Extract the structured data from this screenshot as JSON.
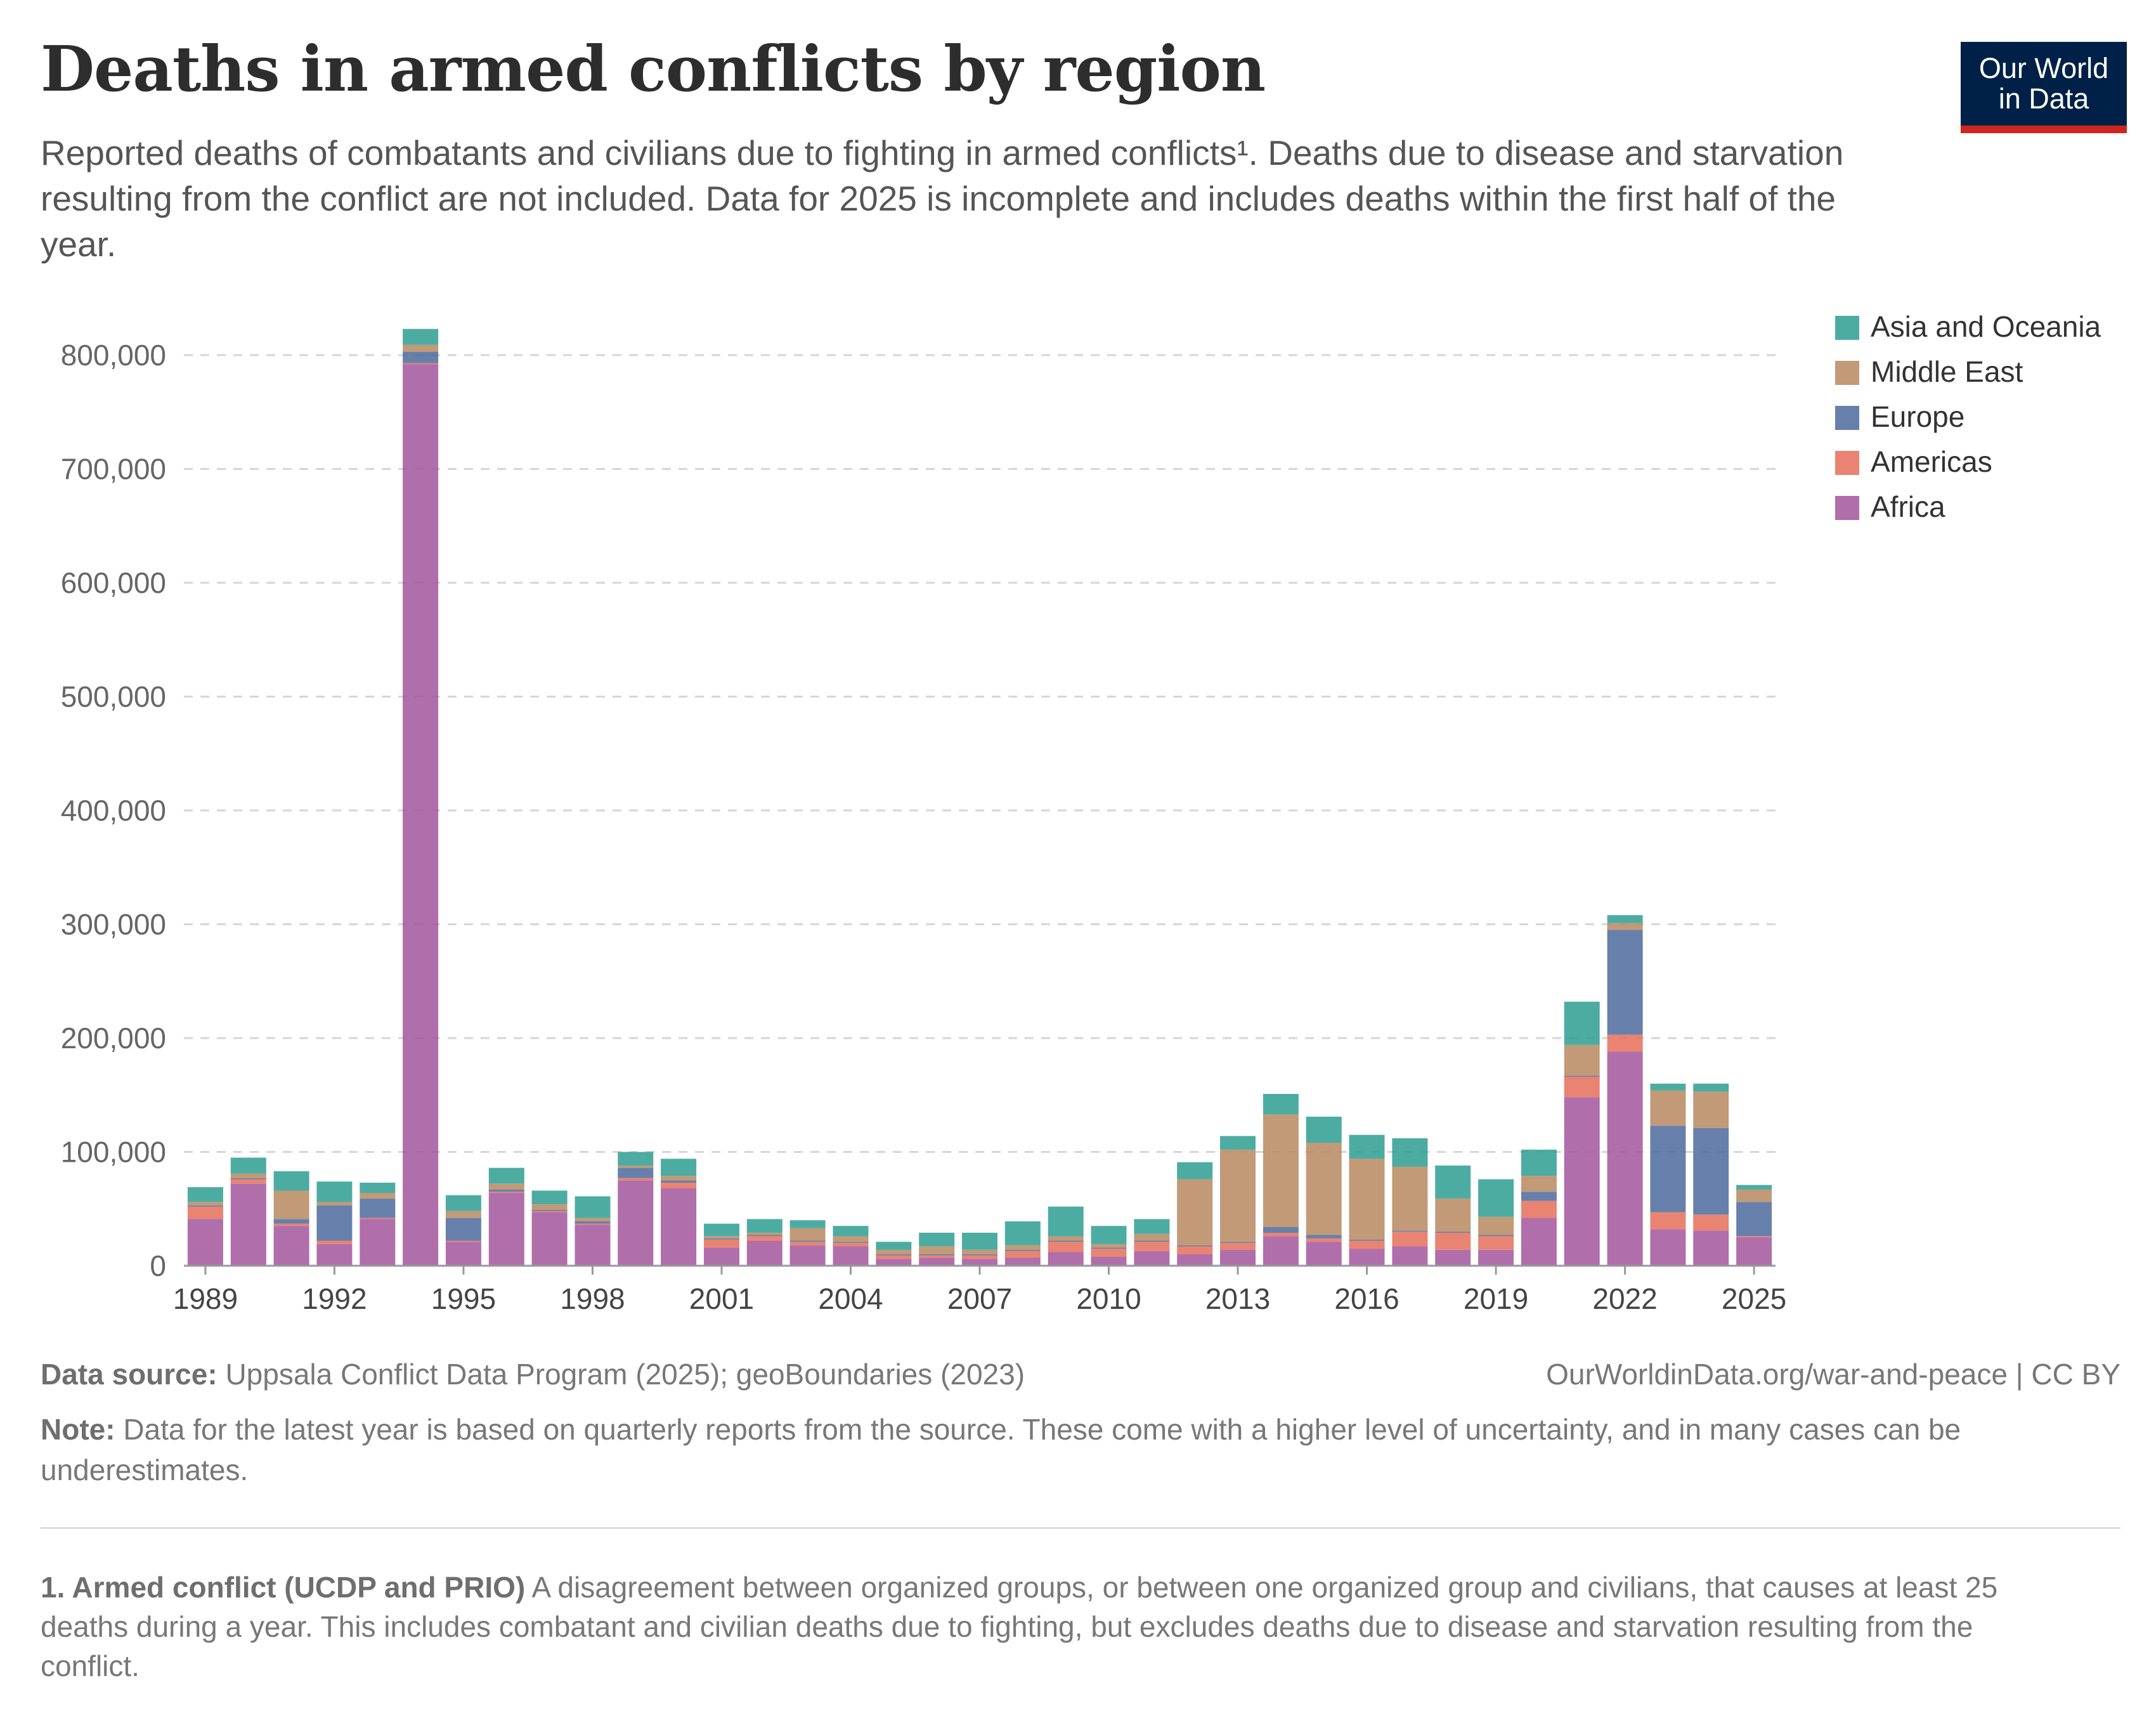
{
  "header": {
    "title": "Deaths in armed conflicts by region",
    "subtitle": "Reported deaths of combatants and civilians due to fighting in armed conflicts¹. Deaths due to disease and starvation resulting from the conflict are not included. Data for 2025 is incomplete and includes deaths within the first half of the year.",
    "logo_line1": "Our World",
    "logo_line2": "in Data"
  },
  "colors": {
    "logo_bg": "#002147",
    "logo_accent": "#ce261e"
  },
  "chart_data": {
    "type": "bar",
    "stacked": true,
    "categories": [
      1989,
      1990,
      1991,
      1992,
      1993,
      1994,
      1995,
      1996,
      1997,
      1998,
      1999,
      2000,
      2001,
      2002,
      2003,
      2004,
      2005,
      2006,
      2007,
      2008,
      2009,
      2010,
      2011,
      2012,
      2013,
      2014,
      2015,
      2016,
      2017,
      2018,
      2019,
      2020,
      2021,
      2022,
      2023,
      2024,
      2025
    ],
    "x_tick_labels": [
      "1989",
      "1992",
      "1995",
      "1998",
      "2001",
      "2004",
      "2007",
      "2010",
      "2013",
      "2016",
      "2019",
      "2022",
      "2025"
    ],
    "y_ticks": [
      0,
      100000,
      200000,
      300000,
      400000,
      500000,
      600000,
      700000,
      800000
    ],
    "y_tick_labels": [
      "0",
      "100,000",
      "200,000",
      "300,000",
      "400,000",
      "500,000",
      "600,000",
      "700,000",
      "800,000"
    ],
    "ylim": [
      0,
      830000
    ],
    "grid": true,
    "legend_position": "top-right",
    "series": [
      {
        "name": "Africa",
        "color": "#a2559c",
        "values": [
          41000,
          72000,
          35000,
          19000,
          41000,
          792000,
          21000,
          64000,
          47000,
          36000,
          75000,
          68000,
          16000,
          22000,
          18000,
          17000,
          6000,
          7000,
          6000,
          7000,
          12000,
          8000,
          13000,
          10000,
          14000,
          26000,
          21000,
          15000,
          17000,
          14000,
          14000,
          42000,
          148000,
          188000,
          32000,
          31000,
          25000
        ]
      },
      {
        "name": "Americas",
        "color": "#e56e5a",
        "values": [
          11000,
          4000,
          2000,
          3000,
          1000,
          1000,
          1000,
          1000,
          1000,
          1000,
          2000,
          5000,
          7000,
          4000,
          3000,
          3000,
          3000,
          2000,
          3000,
          6000,
          9000,
          7000,
          8000,
          7000,
          6000,
          3000,
          3000,
          7000,
          13000,
          15000,
          12000,
          15000,
          18000,
          15000,
          15000,
          14000,
          1000
        ]
      },
      {
        "name": "Europe",
        "color": "#4c6a9c",
        "values": [
          1000,
          1000,
          4000,
          31000,
          17000,
          10000,
          20000,
          2000,
          1000,
          2000,
          9000,
          2000,
          1000,
          1000,
          1000,
          1000,
          1000,
          1000,
          1000,
          1000,
          1000,
          1000,
          1000,
          1000,
          1000,
          5000,
          3000,
          1000,
          1000,
          1000,
          1000,
          8000,
          1000,
          92000,
          76000,
          76000,
          30000
        ]
      },
      {
        "name": "Middle East",
        "color": "#b7885f",
        "values": [
          3000,
          4000,
          25000,
          3000,
          5000,
          6000,
          6000,
          5000,
          5000,
          3000,
          2000,
          4000,
          2000,
          2000,
          11000,
          5000,
          4000,
          7000,
          4000,
          4000,
          4000,
          3000,
          6000,
          58000,
          81000,
          99000,
          81000,
          71000,
          56000,
          29000,
          16000,
          14000,
          27000,
          6000,
          31000,
          32000,
          11000
        ]
      },
      {
        "name": "Asia and Oceania",
        "color": "#2d9d92",
        "values": [
          13000,
          14000,
          17000,
          18000,
          9000,
          14000,
          14000,
          14000,
          12000,
          19000,
          12000,
          15000,
          11000,
          12000,
          7000,
          9000,
          7000,
          12000,
          15000,
          21000,
          26000,
          16000,
          13000,
          15000,
          12000,
          18000,
          23000,
          21000,
          25000,
          29000,
          33000,
          23000,
          38000,
          7000,
          6000,
          7000,
          4000
        ]
      }
    ]
  },
  "footer": {
    "source_label": "Data source:",
    "source_text": "Uppsala Conflict Data Program (2025); geoBoundaries (2023)",
    "url_text": "OurWorldinData.org/war-and-peace | CC BY",
    "note_label": "Note:",
    "note_text": "Data for the latest year is based on quarterly reports from the source. These come with a higher level of uncertainty, and in many cases can be underestimates.",
    "footnote_label": "1. Armed conflict (UCDP and PRIO)",
    "footnote_text": "A disagreement between organized groups, or between one organized group and civilians, that causes at least 25 deaths during a year. This includes combatant and civilian deaths due to fighting, but excludes deaths due to disease and starvation resulting from the conflict."
  }
}
